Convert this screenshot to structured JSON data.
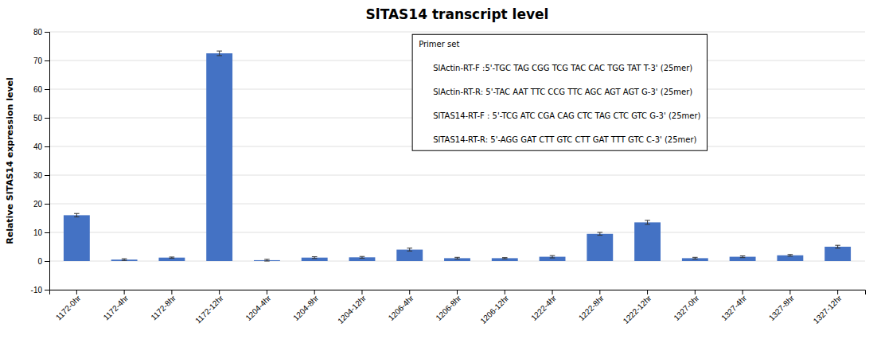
{
  "chart_data": {
    "type": "bar",
    "title": "SlTAS14 transcript level",
    "ylabel": "Relative SlTAS14 expression level",
    "categories": [
      "1172-0hr",
      "1172-4hr",
      "1172-8hr",
      "1172-12hr",
      "1204-4hr",
      "1204-8hr",
      "1204-12hr",
      "1206-4hr",
      "1206-8hr",
      "1206-12hr",
      "1222-4hr",
      "1222-8hr",
      "1222-12hr",
      "1327-0hr",
      "1327-4hr",
      "1327-8hr",
      "1327-12hr"
    ],
    "values": [
      16.0,
      0.5,
      1.2,
      72.5,
      0.3,
      1.2,
      1.3,
      4.0,
      1.0,
      1.0,
      1.5,
      9.5,
      13.5,
      1.0,
      1.5,
      2.0,
      5.0
    ],
    "errors": [
      0.6,
      0.3,
      0.2,
      0.8,
      0.3,
      0.3,
      0.3,
      0.5,
      0.3,
      0.2,
      0.4,
      0.5,
      0.7,
      0.3,
      0.3,
      0.3,
      0.5
    ],
    "color": "#4472C4",
    "ylim": [
      -10,
      80
    ],
    "yticks": [
      -10,
      0,
      10,
      20,
      30,
      40,
      50,
      60,
      70,
      80
    ],
    "grid": true,
    "annotations": [
      "Primer set",
      "SlActin-RT-F :5'-TGC TAG CGG TCG TAC CAC TGG TAT T-3' (25mer)",
      "SlActin-RT-R: 5'-TAC AAT TTC CCG TTC AGC AGT AGT G-3' (25mer)",
      "SlTAS14-RT-F : 5'-TCG ATC CGA CAG CTC TAG CTC GTC G-3' (25mer)",
      "SlTAS14-RT-R: 5'-AGG GAT CTT GTC CTT GAT TTT GTC C-3' (25mer)"
    ]
  }
}
